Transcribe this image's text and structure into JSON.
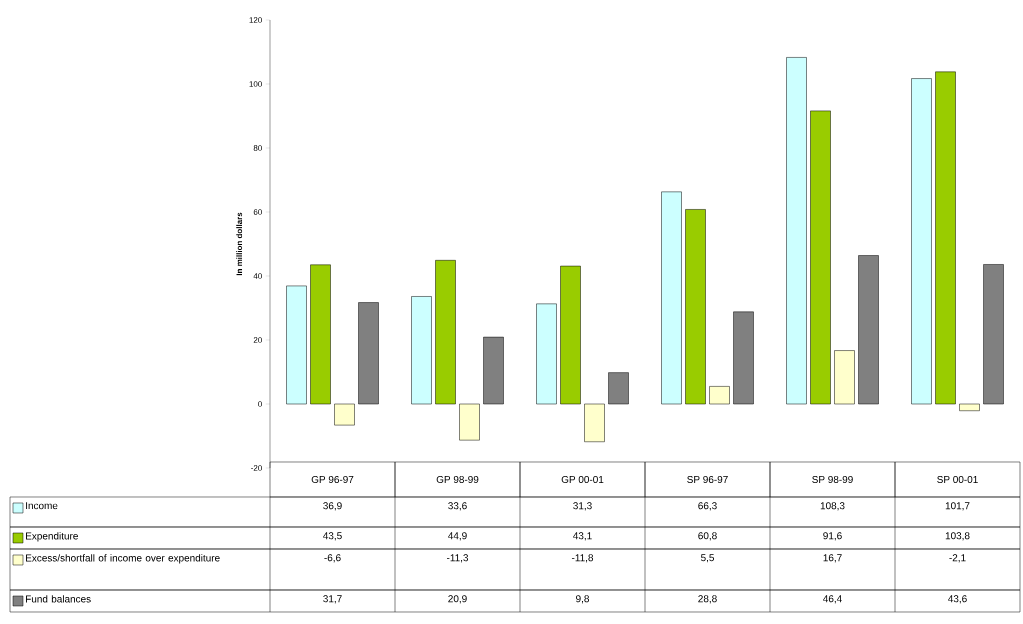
{
  "chart_data": {
    "type": "bar",
    "ylabel": "In million dollars",
    "categories": [
      "GP 96-97",
      "GP 98-99",
      "GP 00-01",
      "SP 96-97",
      "SP 98-99",
      "SP 00-01"
    ],
    "series": [
      {
        "name": "Income",
        "color": "#ccffff",
        "values": [
          36.9,
          33.6,
          31.3,
          66.3,
          108.3,
          101.7
        ],
        "value_labels": [
          "36,9",
          "33,6",
          "31,3",
          "66,3",
          "108,3",
          "101,7"
        ]
      },
      {
        "name": "Expenditure",
        "color": "#99cc00",
        "values": [
          43.5,
          44.9,
          43.1,
          60.8,
          91.6,
          103.8
        ],
        "value_labels": [
          "43,5",
          "44,9",
          "43,1",
          "60,8",
          "91,6",
          "103,8"
        ]
      },
      {
        "name": "Excess/shortfall of income over expenditure",
        "color": "#ffffcc",
        "values": [
          -6.6,
          -11.3,
          -11.8,
          5.5,
          16.7,
          -2.1
        ],
        "value_labels": [
          "-6,6",
          "-11,3",
          "-11,8",
          "5,5",
          "16,7",
          "-2,1"
        ]
      },
      {
        "name": "Fund balances",
        "color": "#808080",
        "values": [
          31.7,
          20.9,
          9.8,
          28.8,
          46.4,
          43.6
        ],
        "value_labels": [
          "31,7",
          "20,9",
          "9,8",
          "28,8",
          "46,4",
          "43,6"
        ]
      }
    ],
    "ylim": [
      -20,
      120
    ],
    "yticks": [
      -20,
      0,
      20,
      40,
      60,
      80,
      100,
      120
    ],
    "legend": "bottom left"
  }
}
